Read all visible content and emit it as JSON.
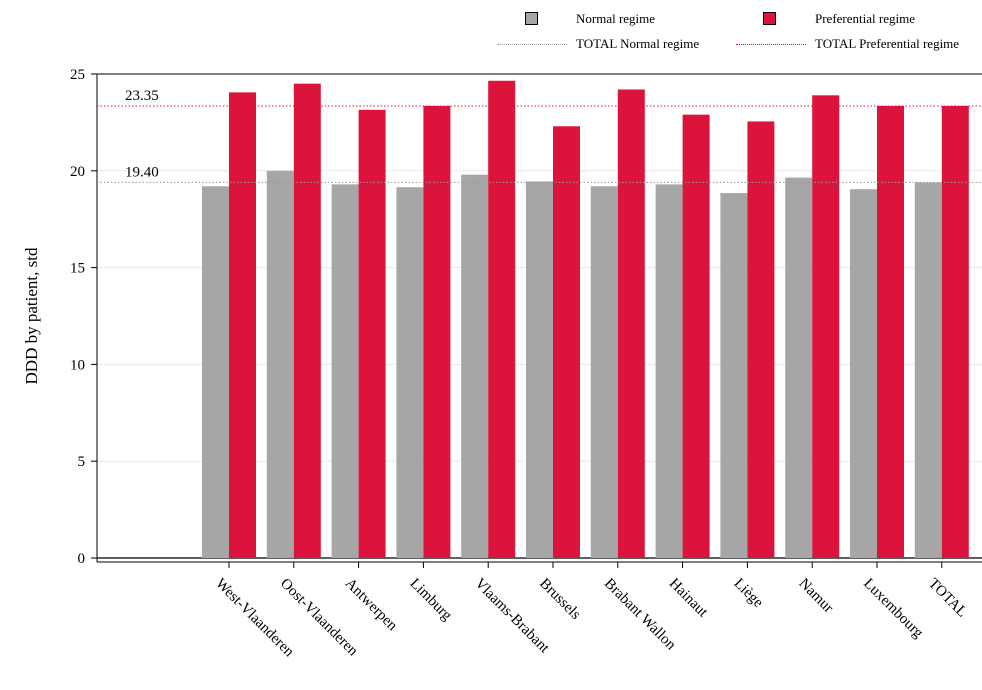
{
  "legend": {
    "normal_label": "Normal regime",
    "preferential_label": "Preferential regime",
    "total_normal_label": "TOTAL Normal regime",
    "total_preferential_label": "TOTAL Preferential regime"
  },
  "colors": {
    "normal": "#a6a6a6",
    "preferential": "#dc143c",
    "total_normal_line": "#999999",
    "total_preferential_line": "#dc143c"
  },
  "chart_data": {
    "type": "bar",
    "ylabel": "DDD by patient, std",
    "xlabel": "",
    "ylim": [
      0,
      25
    ],
    "yticks": [
      0,
      5,
      10,
      15,
      20,
      25
    ],
    "categories": [
      "West-Vlaanderen",
      "Oost-Vlaanderen",
      "Antwerpen",
      "Limburg",
      "Vlaams-Brabant",
      "Brussels",
      "Brabant Wallon",
      "Hainaut",
      "Liège",
      "Namur",
      "Luxembourg",
      "TOTAL"
    ],
    "series": [
      {
        "name": "Normal regime",
        "values": [
          19.2,
          20.0,
          19.3,
          19.15,
          19.8,
          19.45,
          19.2,
          19.3,
          18.85,
          19.65,
          19.05,
          19.4
        ]
      },
      {
        "name": "Preferential regime",
        "values": [
          24.05,
          24.5,
          23.15,
          23.35,
          24.65,
          22.3,
          24.2,
          22.9,
          22.55,
          23.9,
          23.35,
          23.35
        ]
      }
    ],
    "reference_lines": [
      {
        "name": "TOTAL Normal regime",
        "value": 19.4,
        "label": "19.40"
      },
      {
        "name": "TOTAL Preferential regime",
        "value": 23.35,
        "label": "23.35"
      }
    ],
    "grid": true,
    "legend_position": "top-right"
  }
}
